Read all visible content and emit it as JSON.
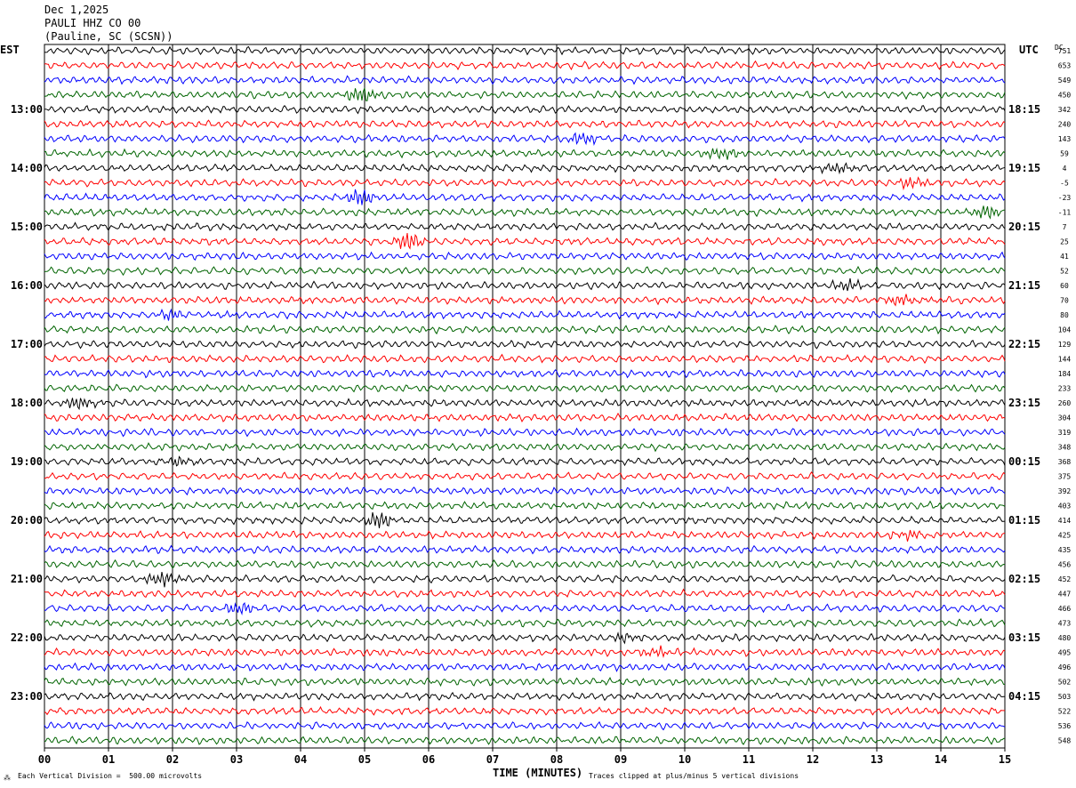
{
  "header": {
    "date": "Dec 1,2025",
    "station": "PAULI HHZ CO 00",
    "location": "(Pauline, SC (SCSN))"
  },
  "axes": {
    "left_tz": "EST",
    "right_tz": "UTC",
    "right_col": "DC",
    "xlabel": "TIME (MINUTES)"
  },
  "footer": {
    "scale_note": "Each Vertical Division =  500.00 microvolts",
    "clip_note": "Traces clipped at plus/minus 5 vertical divisions",
    "mark": "⁂"
  },
  "colors": {
    "trace_cycle": [
      "#000000",
      "#ff0000",
      "#0000ff",
      "#006400"
    ],
    "grid": "#000000"
  },
  "chart_data": {
    "type": "line",
    "title": "",
    "xlim": [
      0,
      15
    ],
    "x_ticks": [
      "00",
      "01",
      "02",
      "03",
      "04",
      "05",
      "06",
      "07",
      "08",
      "09",
      "10",
      "11",
      "12",
      "13",
      "14",
      "15"
    ],
    "trace_count": 48,
    "left_time_labels": [
      {
        "trace": 4,
        "label": "13:00"
      },
      {
        "trace": 8,
        "label": "14:00"
      },
      {
        "trace": 12,
        "label": "15:00"
      },
      {
        "trace": 16,
        "label": "16:00"
      },
      {
        "trace": 20,
        "label": "17:00"
      },
      {
        "trace": 24,
        "label": "18:00"
      },
      {
        "trace": 28,
        "label": "19:00"
      },
      {
        "trace": 32,
        "label": "20:00"
      },
      {
        "trace": 36,
        "label": "21:00"
      },
      {
        "trace": 40,
        "label": "22:00"
      },
      {
        "trace": 44,
        "label": "23:00"
      }
    ],
    "right_time_labels": [
      {
        "trace": 4,
        "label": "18:15"
      },
      {
        "trace": 8,
        "label": "19:15"
      },
      {
        "trace": 12,
        "label": "20:15"
      },
      {
        "trace": 16,
        "label": "21:15"
      },
      {
        "trace": 20,
        "label": "22:15"
      },
      {
        "trace": 24,
        "label": "23:15"
      },
      {
        "trace": 28,
        "label": "00:15"
      },
      {
        "trace": 32,
        "label": "01:15"
      },
      {
        "trace": 36,
        "label": "02:15"
      },
      {
        "trace": 40,
        "label": "03:15"
      },
      {
        "trace": 44,
        "label": "04:15"
      }
    ],
    "dc_offsets": [
      "751",
      "653",
      "549",
      "450",
      "342",
      "240",
      "143",
      "59",
      "4",
      "-5",
      "-23",
      "-11",
      "7",
      "25",
      "41",
      "52",
      "60",
      "70",
      "80",
      "104",
      "129",
      "144",
      "184",
      "233",
      "260",
      "304",
      "319",
      "348",
      "368",
      "375",
      "392",
      "403",
      "414",
      "425",
      "435",
      "456",
      "452",
      "447",
      "466",
      "473",
      "480",
      "495",
      "496",
      "502",
      "503",
      "522",
      "536",
      "548"
    ]
  }
}
